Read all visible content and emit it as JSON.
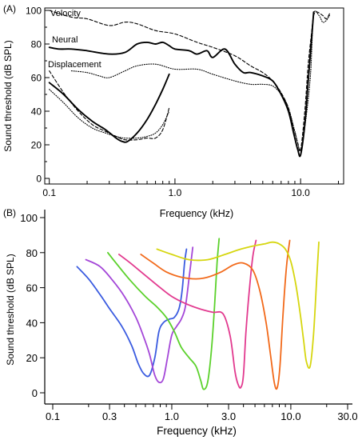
{
  "chart_data": [
    {
      "type": "line",
      "panel_label": "(A)",
      "xlabel": "Frequency (kHz)",
      "ylabel": "Sound threshold (dB SPL)",
      "xscale": "log",
      "xlim": [
        0.1,
        20
      ],
      "ylim": [
        0,
        100
      ],
      "xticks": [
        0.1,
        1.0,
        10.0
      ],
      "xtick_labels": [
        "0.1",
        "1.0",
        "10.0"
      ],
      "yticks": [
        0,
        20,
        40,
        60,
        80,
        100
      ],
      "ytick_labels": [
        "0",
        "20",
        "40",
        "60",
        "80",
        "100"
      ],
      "grid": false,
      "series": [
        {
          "name": "Velocity",
          "style": "dashed",
          "color": "#000000",
          "x": [
            0.1,
            0.15,
            0.2,
            0.3,
            0.4,
            0.5,
            0.7,
            1.0,
            1.5,
            2.0,
            3.0,
            4.0,
            5.0,
            6.0,
            7.0,
            8.0,
            8.8,
            9.5,
            10.0,
            10.8,
            11.5,
            12.2,
            12.7,
            13.5,
            15.0,
            16.0,
            17.0
          ],
          "y": [
            100,
            96,
            95,
            91,
            93,
            92,
            88,
            86,
            81,
            78,
            73,
            67,
            63,
            58,
            51,
            42,
            30,
            21,
            17,
            40,
            68,
            86,
            97,
            99,
            97,
            95,
            98
          ]
        },
        {
          "name": "Neural",
          "style": "solid",
          "color": "#000000",
          "x": [
            0.1,
            0.12,
            0.15,
            0.2,
            0.3,
            0.4,
            0.5,
            0.6,
            0.7,
            0.8,
            0.9,
            1.0,
            1.3,
            1.5,
            1.8,
            2.0,
            2.5,
            3.0,
            3.5,
            4.0,
            5.0,
            6.0,
            7.0,
            8.0,
            8.8,
            9.5,
            10.0,
            10.8,
            11.5,
            12.2,
            12.7
          ],
          "y": [
            78,
            77,
            77,
            76,
            74,
            75,
            80,
            81,
            80,
            81,
            79,
            77,
            76,
            74,
            76,
            72,
            77,
            68,
            63,
            63,
            61,
            58,
            50,
            40,
            27,
            17,
            14,
            32,
            58,
            82,
            99
          ]
        },
        {
          "name": "Displacement",
          "style": "dotted",
          "color": "#000000",
          "x": [
            0.15,
            0.2,
            0.25,
            0.3,
            0.4,
            0.5,
            0.7,
            1.0,
            1.5,
            2.0,
            3.0,
            4.0,
            5.0,
            6.0,
            7.0,
            8.0,
            9.0,
            10.0,
            11.0,
            12.0,
            12.7,
            14.0,
            15.0,
            16.0,
            17.0
          ],
          "y": [
            64,
            63,
            61,
            60,
            64,
            67,
            68,
            65,
            65,
            62,
            58,
            56,
            56,
            55,
            50,
            42,
            28,
            17,
            35,
            62,
            97,
            97,
            93,
            94,
            97
          ]
        },
        {
          "name": "",
          "style": "solid",
          "color": "#000000",
          "x": [
            0.1,
            0.13,
            0.17,
            0.22,
            0.28,
            0.34,
            0.38,
            0.42,
            0.5,
            0.6,
            0.7,
            0.8,
            0.9
          ],
          "y": [
            57,
            50,
            41,
            34,
            29,
            24,
            22,
            22,
            27,
            35,
            44,
            53,
            62
          ]
        },
        {
          "name": "",
          "style": "dashed",
          "color": "#000000",
          "x": [
            0.1,
            0.13,
            0.17,
            0.22,
            0.28,
            0.34,
            0.4,
            0.5,
            0.6,
            0.7,
            0.8,
            0.9
          ],
          "y": [
            64,
            51,
            40,
            32,
            28,
            25,
            23,
            23,
            24,
            24,
            29,
            42
          ]
        },
        {
          "name": "",
          "style": "dotted",
          "color": "#000000",
          "x": [
            0.1,
            0.13,
            0.17,
            0.22,
            0.28,
            0.34,
            0.4,
            0.5,
            0.6,
            0.7,
            0.8,
            0.9
          ],
          "y": [
            53,
            45,
            36,
            30,
            27,
            25,
            24,
            24,
            25,
            27,
            32,
            40
          ]
        }
      ]
    },
    {
      "type": "line",
      "panel_label": "(B)",
      "xlabel": "Frequency (kHz)",
      "ylabel": "Sound threshold (dB SPL)",
      "xscale": "log",
      "xlim": [
        0.1,
        30
      ],
      "ylim": [
        0,
        100
      ],
      "xticks": [
        0.1,
        0.3,
        1.0,
        3.0,
        10.0,
        30.0
      ],
      "xtick_labels": [
        "0.1",
        "0.3",
        "1.0",
        "3.0",
        "10.0",
        "30.0"
      ],
      "yticks": [
        0,
        20,
        40,
        60,
        80,
        100
      ],
      "ytick_labels": [
        "0",
        "20",
        "40",
        "60",
        "80",
        "100"
      ],
      "grid": false,
      "series": [
        {
          "name": "",
          "color": "#3a5be0",
          "x": [
            0.16,
            0.2,
            0.25,
            0.3,
            0.38,
            0.46,
            0.52,
            0.58,
            0.65,
            0.72,
            0.78,
            0.85,
            0.95,
            1.05,
            1.15,
            1.22,
            1.28,
            1.33
          ],
          "y": [
            72,
            65,
            56,
            48,
            38,
            27,
            17,
            11,
            10,
            20,
            35,
            40,
            42,
            43,
            48,
            58,
            74,
            82
          ]
        },
        {
          "name": "",
          "color": "#a447d8",
          "x": [
            0.19,
            0.25,
            0.32,
            0.4,
            0.5,
            0.58,
            0.65,
            0.72,
            0.78,
            0.85,
            0.92,
            1.0,
            1.1,
            1.2,
            1.3,
            1.4,
            1.5
          ],
          "y": [
            76,
            72,
            64,
            55,
            43,
            32,
            22,
            10,
            6,
            8,
            20,
            33,
            38,
            42,
            49,
            66,
            83
          ]
        },
        {
          "name": "",
          "color": "#5bd12b",
          "x": [
            0.29,
            0.35,
            0.45,
            0.6,
            0.75,
            0.9,
            1.05,
            1.2,
            1.4,
            1.6,
            1.75,
            1.85,
            2.0,
            2.15,
            2.3,
            2.4,
            2.5
          ],
          "y": [
            80,
            73,
            64,
            55,
            49,
            43,
            35,
            26,
            20,
            15,
            7,
            2,
            6,
            24,
            52,
            74,
            88
          ]
        },
        {
          "name": "",
          "color": "#e23a8f",
          "x": [
            0.36,
            0.45,
            0.6,
            0.8,
            1.0,
            1.3,
            1.7,
            2.2,
            2.7,
            3.1,
            3.4,
            3.6,
            3.8,
            4.0,
            4.2,
            4.5,
            4.8,
            5.1
          ],
          "y": [
            79,
            74,
            67,
            60,
            55,
            51,
            48,
            46,
            45,
            32,
            12,
            5,
            3,
            10,
            35,
            60,
            78,
            87
          ]
        },
        {
          "name": "",
          "color": "#f26a1b",
          "x": [
            0.55,
            0.7,
            0.9,
            1.2,
            1.6,
            2.0,
            2.6,
            3.3,
            4.0,
            4.8,
            5.5,
            6.2,
            6.8,
            7.3,
            7.7,
            8.1,
            8.6,
            9.2,
            9.8
          ],
          "y": [
            79,
            74,
            69,
            66,
            65,
            66,
            69,
            73,
            74,
            70,
            58,
            40,
            20,
            5,
            3,
            15,
            45,
            72,
            87
          ]
        },
        {
          "name": "",
          "color": "#d6d60f",
          "x": [
            0.75,
            1.0,
            1.4,
            2.0,
            2.8,
            3.8,
            5.0,
            6.0,
            7.0,
            8.0,
            9.0,
            10.0,
            11.0,
            12.0,
            12.8,
            13.5,
            14.5,
            15.5,
            16.5,
            17.2
          ],
          "y": [
            82,
            79,
            76,
            76,
            79,
            82,
            84,
            85,
            86,
            85,
            82,
            75,
            62,
            45,
            30,
            18,
            15,
            33,
            65,
            86
          ]
        }
      ]
    }
  ],
  "annotations_a": {
    "velocity": "Velocity",
    "neural": "Neural",
    "displacement": "Displacement"
  }
}
